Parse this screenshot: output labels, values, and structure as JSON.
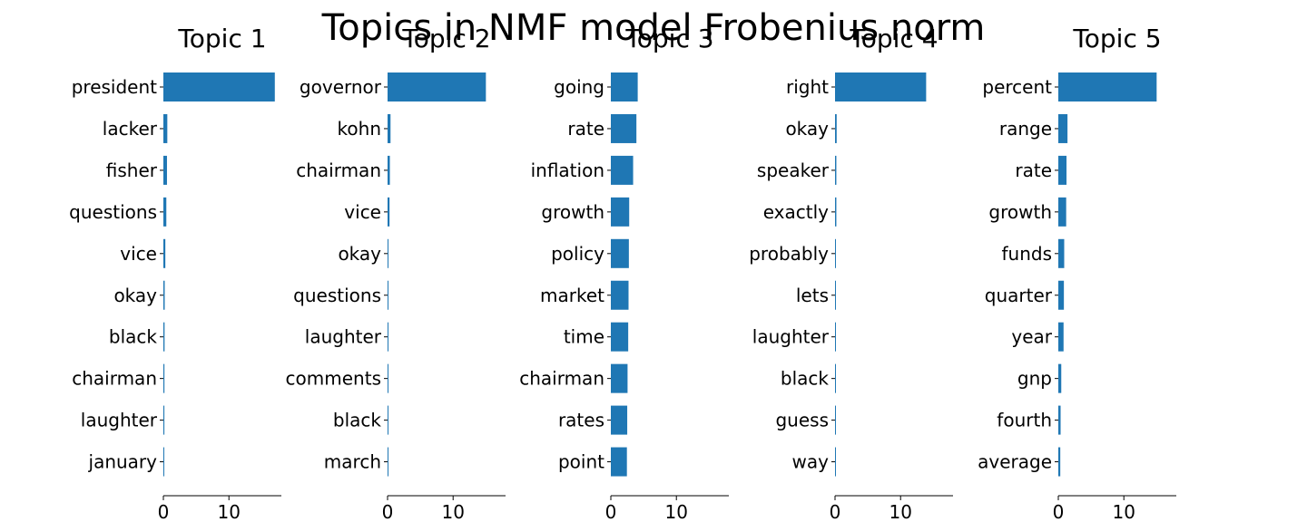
{
  "figure": {
    "title": "Topics in NMF model Frobenius norm"
  },
  "chart_data": [
    {
      "type": "bar",
      "orientation": "horizontal",
      "title": "Topic 1",
      "categories": [
        "president",
        "lacker",
        "fisher",
        "questions",
        "vice",
        "okay",
        "black",
        "chairman",
        "laughter",
        "january"
      ],
      "values": [
        17.0,
        0.6,
        0.55,
        0.45,
        0.3,
        0.2,
        0.18,
        0.16,
        0.15,
        0.05
      ],
      "xlim": [
        0,
        18
      ],
      "xticks": [
        0,
        10
      ],
      "color": "#1f77b4"
    },
    {
      "type": "bar",
      "orientation": "horizontal",
      "title": "Topic 2",
      "categories": [
        "governor",
        "kohn",
        "chairman",
        "vice",
        "okay",
        "questions",
        "laughter",
        "comments",
        "black",
        "march"
      ],
      "values": [
        15.0,
        0.45,
        0.35,
        0.3,
        0.05,
        0.05,
        0.05,
        0.05,
        0.05,
        0.05
      ],
      "xlim": [
        0,
        18
      ],
      "xticks": [
        0,
        10
      ],
      "color": "#1f77b4"
    },
    {
      "type": "bar",
      "orientation": "horizontal",
      "title": "Topic 3",
      "categories": [
        "going",
        "rate",
        "inflation",
        "growth",
        "policy",
        "market",
        "time",
        "chairman",
        "rates",
        "point"
      ],
      "values": [
        4.1,
        3.9,
        3.4,
        2.8,
        2.75,
        2.7,
        2.65,
        2.55,
        2.5,
        2.45
      ],
      "xlim": [
        0,
        18
      ],
      "xticks": [
        0,
        10
      ],
      "color": "#1f77b4"
    },
    {
      "type": "bar",
      "orientation": "horizontal",
      "title": "Topic 4",
      "categories": [
        "right",
        "okay",
        "speaker",
        "exactly",
        "probably",
        "lets",
        "laughter",
        "black",
        "guess",
        "way"
      ],
      "values": [
        13.9,
        0.25,
        0.2,
        0.2,
        0.05,
        0.05,
        0.05,
        0.05,
        0.05,
        0.05
      ],
      "xlim": [
        0,
        18
      ],
      "xticks": [
        0,
        10
      ],
      "color": "#1f77b4"
    },
    {
      "type": "bar",
      "orientation": "horizontal",
      "title": "Topic 5",
      "categories": [
        "percent",
        "range",
        "rate",
        "growth",
        "funds",
        "quarter",
        "year",
        "gnp",
        "fourth",
        "average"
      ],
      "values": [
        15.0,
        1.4,
        1.25,
        1.2,
        0.9,
        0.85,
        0.8,
        0.45,
        0.35,
        0.3
      ],
      "xlim": [
        0,
        18
      ],
      "xticks": [
        0,
        10
      ],
      "color": "#1f77b4"
    }
  ]
}
